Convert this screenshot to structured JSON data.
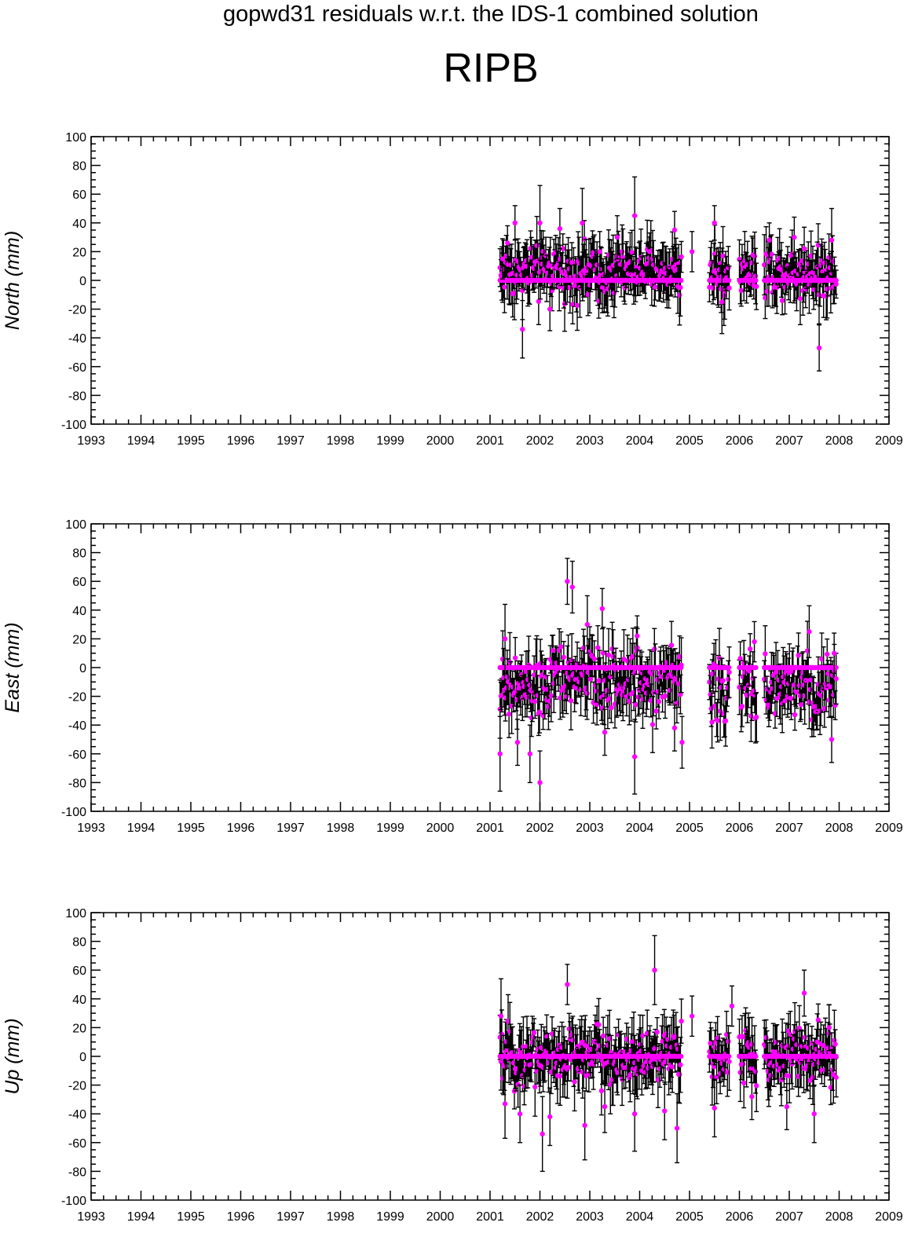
{
  "header": {
    "title": "gopwd31 residuals w.r.t. the IDS-1 combined solution",
    "station": "RIPB"
  },
  "colors": {
    "points": "#ff00ff",
    "error_bars": "#000000",
    "axes": "#000000"
  },
  "chart_data": [
    {
      "type": "scatter",
      "title": "",
      "xlabel": "",
      "ylabel": "North (mm)",
      "xlim": [
        1993,
        2009
      ],
      "ylim": [
        -100,
        100
      ],
      "x_ticks": [
        "1993",
        "1994",
        "1995",
        "1996",
        "1997",
        "1998",
        "1999",
        "2000",
        "2001",
        "2002",
        "2003",
        "2004",
        "2005",
        "2006",
        "2007",
        "2008",
        "2009"
      ],
      "y_ticks": [
        "100",
        "80",
        "60",
        "40",
        "20",
        "0",
        "-20",
        "-40",
        "-60",
        "-80",
        "-100"
      ],
      "error_bars": true,
      "segments": [
        [
          2001.2,
          2004.85
        ],
        [
          2005.4,
          2005.8
        ],
        [
          2006.0,
          2006.35
        ],
        [
          2006.5,
          2007.95
        ]
      ],
      "zero_cluster": true,
      "series": [
        {
          "points": [
            {
              "x": 2001.25,
              "y": 15,
              "err": 14
            },
            {
              "x": 2001.35,
              "y": 26,
              "err": 12
            },
            {
              "x": 2001.5,
              "y": 40,
              "err": 12
            },
            {
              "x": 2001.65,
              "y": -34,
              "err": 20
            },
            {
              "x": 2002.0,
              "y": 40,
              "err": 26
            },
            {
              "x": 2002.2,
              "y": -20,
              "err": 15
            },
            {
              "x": 2002.4,
              "y": 36,
              "err": 14
            },
            {
              "x": 2002.85,
              "y": 40,
              "err": 24
            },
            {
              "x": 2003.2,
              "y": 20,
              "err": 14
            },
            {
              "x": 2003.55,
              "y": 30,
              "err": 15
            },
            {
              "x": 2003.9,
              "y": 45,
              "err": 27
            },
            {
              "x": 2004.2,
              "y": 20,
              "err": 13
            },
            {
              "x": 2004.7,
              "y": 35,
              "err": 13
            },
            {
              "x": 2005.05,
              "y": 20,
              "err": 14
            },
            {
              "x": 2005.5,
              "y": 40,
              "err": 12
            },
            {
              "x": 2005.65,
              "y": -15,
              "err": 22
            },
            {
              "x": 2006.6,
              "y": 28,
              "err": 12
            },
            {
              "x": 2007.1,
              "y": 30,
              "err": 14
            },
            {
              "x": 2007.3,
              "y": 22,
              "err": 15
            },
            {
              "x": 2007.6,
              "y": -47,
              "err": 16
            },
            {
              "x": 2007.85,
              "y": 28,
              "err": 22
            }
          ]
        }
      ]
    },
    {
      "type": "scatter",
      "title": "",
      "xlabel": "",
      "ylabel": "East (mm)",
      "xlim": [
        1993,
        2009
      ],
      "ylim": [
        -100,
        100
      ],
      "x_ticks": [
        "1993",
        "1994",
        "1995",
        "1996",
        "1997",
        "1998",
        "1999",
        "2000",
        "2001",
        "2002",
        "2003",
        "2004",
        "2005",
        "2006",
        "2007",
        "2008",
        "2009"
      ],
      "y_ticks": [
        "100",
        "80",
        "60",
        "40",
        "20",
        "0",
        "-20",
        "-40",
        "-60",
        "-80",
        "-100"
      ],
      "error_bars": true,
      "segments": [
        [
          2001.2,
          2004.85
        ],
        [
          2005.4,
          2005.8
        ],
        [
          2006.0,
          2006.35
        ],
        [
          2006.5,
          2007.95
        ]
      ],
      "zero_cluster": true,
      "series": [
        {
          "points": [
            {
              "x": 2001.2,
              "y": -60,
              "err": 26
            },
            {
              "x": 2001.3,
              "y": 20,
              "err": 24
            },
            {
              "x": 2001.55,
              "y": -52,
              "err": 16
            },
            {
              "x": 2001.8,
              "y": -60,
              "err": 20
            },
            {
              "x": 2002.0,
              "y": -80,
              "err": 22
            },
            {
              "x": 2002.55,
              "y": 60,
              "err": 16
            },
            {
              "x": 2002.65,
              "y": 56,
              "err": 18
            },
            {
              "x": 2002.95,
              "y": 30,
              "err": 20
            },
            {
              "x": 2003.25,
              "y": 41,
              "err": 14
            },
            {
              "x": 2003.3,
              "y": -45,
              "err": 16
            },
            {
              "x": 2003.9,
              "y": -62,
              "err": 26
            },
            {
              "x": 2003.95,
              "y": 22,
              "err": 14
            },
            {
              "x": 2004.7,
              "y": -42,
              "err": 16
            },
            {
              "x": 2004.85,
              "y": -52,
              "err": 18
            },
            {
              "x": 2005.45,
              "y": -38,
              "err": 18
            },
            {
              "x": 2006.3,
              "y": 18,
              "err": 14
            },
            {
              "x": 2007.4,
              "y": 25,
              "err": 18
            },
            {
              "x": 2007.85,
              "y": -50,
              "err": 16
            },
            {
              "x": 2007.9,
              "y": 10,
              "err": 14
            }
          ]
        }
      ]
    },
    {
      "type": "scatter",
      "title": "",
      "xlabel": "",
      "ylabel": "Up (mm)",
      "xlim": [
        1993,
        2009
      ],
      "ylim": [
        -100,
        100
      ],
      "x_ticks": [
        "1993",
        "1994",
        "1995",
        "1996",
        "1997",
        "1998",
        "1999",
        "2000",
        "2001",
        "2002",
        "2003",
        "2004",
        "2005",
        "2006",
        "2007",
        "2008",
        "2009"
      ],
      "y_ticks": [
        "100",
        "80",
        "60",
        "40",
        "20",
        "0",
        "-20",
        "-40",
        "-60",
        "-80",
        "-100"
      ],
      "error_bars": true,
      "segments": [
        [
          2001.2,
          2004.85
        ],
        [
          2005.4,
          2005.8
        ],
        [
          2006.0,
          2006.35
        ],
        [
          2006.5,
          2007.95
        ]
      ],
      "zero_cluster": true,
      "series": [
        {
          "points": [
            {
              "x": 2001.22,
              "y": 28,
              "err": 26
            },
            {
              "x": 2001.3,
              "y": -33,
              "err": 24
            },
            {
              "x": 2001.6,
              "y": -40,
              "err": 20
            },
            {
              "x": 2002.05,
              "y": -54,
              "err": 26
            },
            {
              "x": 2002.2,
              "y": -42,
              "err": 20
            },
            {
              "x": 2002.55,
              "y": 50,
              "err": 14
            },
            {
              "x": 2002.9,
              "y": -48,
              "err": 24
            },
            {
              "x": 2003.3,
              "y": -35,
              "err": 18
            },
            {
              "x": 2003.9,
              "y": -40,
              "err": 26
            },
            {
              "x": 2004.3,
              "y": 60,
              "err": 24
            },
            {
              "x": 2004.5,
              "y": -38,
              "err": 20
            },
            {
              "x": 2004.75,
              "y": -50,
              "err": 24
            },
            {
              "x": 2005.05,
              "y": 28,
              "err": 14
            },
            {
              "x": 2005.5,
              "y": -36,
              "err": 20
            },
            {
              "x": 2005.85,
              "y": 35,
              "err": 14
            },
            {
              "x": 2006.25,
              "y": -28,
              "err": 16
            },
            {
              "x": 2006.95,
              "y": -35,
              "err": 16
            },
            {
              "x": 2007.3,
              "y": 44,
              "err": 16
            },
            {
              "x": 2007.5,
              "y": -40,
              "err": 20
            },
            {
              "x": 2007.8,
              "y": 20,
              "err": 16
            }
          ]
        }
      ]
    }
  ]
}
